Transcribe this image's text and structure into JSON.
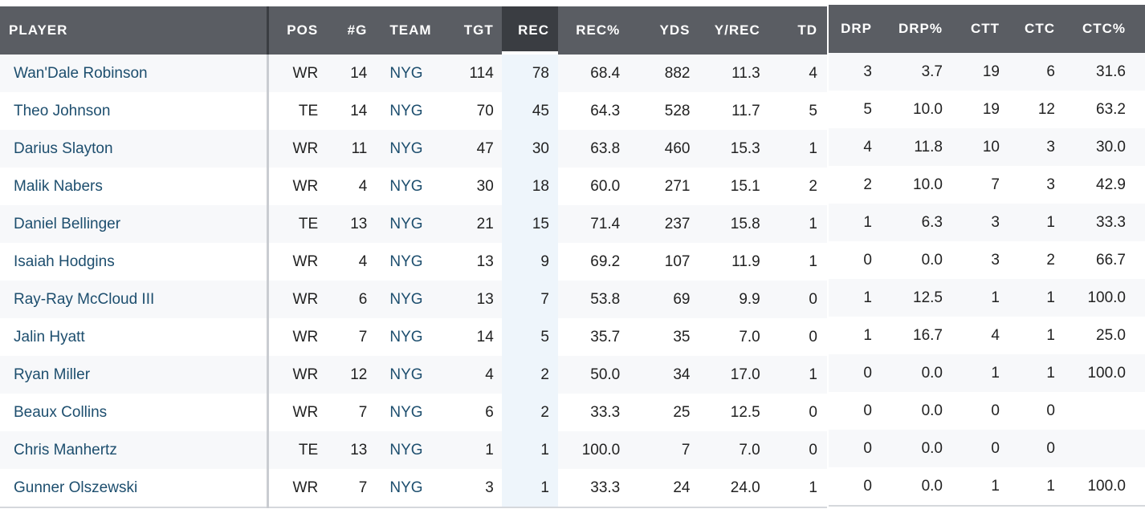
{
  "left_headers": [
    "PLAYER",
    "POS",
    "#G",
    "TEAM",
    "TGT",
    "REC",
    "REC%",
    "YDS",
    "Y/REC",
    "TD"
  ],
  "right_headers": [
    "DRP",
    "DRP%",
    "CTT",
    "CTC",
    "CTC%"
  ],
  "sorted_column": "REC",
  "rows": [
    {
      "player": "Wan'Dale Robinson",
      "pos": "WR",
      "g": "14",
      "team": "NYG",
      "tgt": "114",
      "rec": "78",
      "rec_pct": "68.4",
      "yds": "882",
      "y_rec": "11.3",
      "td": "4",
      "drp": "3",
      "drp_pct": "3.7",
      "ctt": "19",
      "ctc": "6",
      "ctc_pct": "31.6"
    },
    {
      "player": "Theo Johnson",
      "pos": "TE",
      "g": "14",
      "team": "NYG",
      "tgt": "70",
      "rec": "45",
      "rec_pct": "64.3",
      "yds": "528",
      "y_rec": "11.7",
      "td": "5",
      "drp": "5",
      "drp_pct": "10.0",
      "ctt": "19",
      "ctc": "12",
      "ctc_pct": "63.2"
    },
    {
      "player": "Darius Slayton",
      "pos": "WR",
      "g": "11",
      "team": "NYG",
      "tgt": "47",
      "rec": "30",
      "rec_pct": "63.8",
      "yds": "460",
      "y_rec": "15.3",
      "td": "1",
      "drp": "4",
      "drp_pct": "11.8",
      "ctt": "10",
      "ctc": "3",
      "ctc_pct": "30.0"
    },
    {
      "player": "Malik Nabers",
      "pos": "WR",
      "g": "4",
      "team": "NYG",
      "tgt": "30",
      "rec": "18",
      "rec_pct": "60.0",
      "yds": "271",
      "y_rec": "15.1",
      "td": "2",
      "drp": "2",
      "drp_pct": "10.0",
      "ctt": "7",
      "ctc": "3",
      "ctc_pct": "42.9"
    },
    {
      "player": "Daniel Bellinger",
      "pos": "TE",
      "g": "13",
      "team": "NYG",
      "tgt": "21",
      "rec": "15",
      "rec_pct": "71.4",
      "yds": "237",
      "y_rec": "15.8",
      "td": "1",
      "drp": "1",
      "drp_pct": "6.3",
      "ctt": "3",
      "ctc": "1",
      "ctc_pct": "33.3"
    },
    {
      "player": "Isaiah Hodgins",
      "pos": "WR",
      "g": "4",
      "team": "NYG",
      "tgt": "13",
      "rec": "9",
      "rec_pct": "69.2",
      "yds": "107",
      "y_rec": "11.9",
      "td": "1",
      "drp": "0",
      "drp_pct": "0.0",
      "ctt": "3",
      "ctc": "2",
      "ctc_pct": "66.7"
    },
    {
      "player": "Ray-Ray McCloud III",
      "pos": "WR",
      "g": "6",
      "team": "NYG",
      "tgt": "13",
      "rec": "7",
      "rec_pct": "53.8",
      "yds": "69",
      "y_rec": "9.9",
      "td": "0",
      "drp": "1",
      "drp_pct": "12.5",
      "ctt": "1",
      "ctc": "1",
      "ctc_pct": "100.0"
    },
    {
      "player": "Jalin Hyatt",
      "pos": "WR",
      "g": "7",
      "team": "NYG",
      "tgt": "14",
      "rec": "5",
      "rec_pct": "35.7",
      "yds": "35",
      "y_rec": "7.0",
      "td": "0",
      "drp": "1",
      "drp_pct": "16.7",
      "ctt": "4",
      "ctc": "1",
      "ctc_pct": "25.0"
    },
    {
      "player": "Ryan Miller",
      "pos": "WR",
      "g": "12",
      "team": "NYG",
      "tgt": "4",
      "rec": "2",
      "rec_pct": "50.0",
      "yds": "34",
      "y_rec": "17.0",
      "td": "1",
      "drp": "0",
      "drp_pct": "0.0",
      "ctt": "1",
      "ctc": "1",
      "ctc_pct": "100.0"
    },
    {
      "player": "Beaux Collins",
      "pos": "WR",
      "g": "7",
      "team": "NYG",
      "tgt": "6",
      "rec": "2",
      "rec_pct": "33.3",
      "yds": "25",
      "y_rec": "12.5",
      "td": "0",
      "drp": "0",
      "drp_pct": "0.0",
      "ctt": "0",
      "ctc": "0",
      "ctc_pct": ""
    },
    {
      "player": "Chris Manhertz",
      "pos": "TE",
      "g": "13",
      "team": "NYG",
      "tgt": "1",
      "rec": "1",
      "rec_pct": "100.0",
      "yds": "7",
      "y_rec": "7.0",
      "td": "0",
      "drp": "0",
      "drp_pct": "0.0",
      "ctt": "0",
      "ctc": "0",
      "ctc_pct": ""
    },
    {
      "player": "Gunner Olszewski",
      "pos": "WR",
      "g": "7",
      "team": "NYG",
      "tgt": "3",
      "rec": "1",
      "rec_pct": "33.3",
      "yds": "24",
      "y_rec": "24.0",
      "td": "1",
      "drp": "0",
      "drp_pct": "0.0",
      "ctt": "1",
      "ctc": "1",
      "ctc_pct": "100.0"
    }
  ]
}
